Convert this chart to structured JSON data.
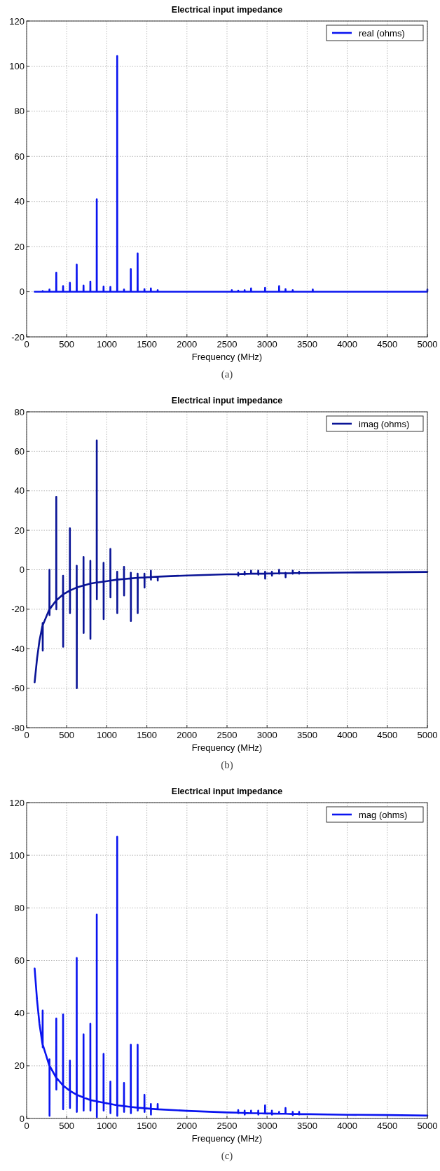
{
  "chart_data": [
    {
      "type": "line",
      "title": "Electrical input impedance",
      "xlabel": "Frequency (MHz)",
      "annotations": [
        "(a)"
      ],
      "xlim": [
        0,
        5000
      ],
      "xticks": [
        0,
        500,
        1000,
        1500,
        2000,
        2500,
        3000,
        3500,
        4000,
        4500,
        5000
      ],
      "ylim": [
        -20,
        120
      ],
      "yticks": [
        -20,
        0,
        20,
        40,
        60,
        80,
        100,
        120
      ],
      "grid": true,
      "legend": "top right",
      "series": [
        {
          "name": "real (ohms)",
          "color": "#0a14f0",
          "x": [
            100,
            199,
            200,
            201,
            284,
            285,
            286,
            369,
            370,
            371,
            454,
            455,
            456,
            539,
            540,
            541,
            624,
            625,
            626,
            709,
            710,
            711,
            794,
            795,
            796,
            874,
            875,
            876,
            959,
            960,
            961,
            1044,
            1045,
            1046,
            1129,
            1130,
            1131,
            1214,
            1215,
            1216,
            1299,
            1300,
            1301,
            1384,
            1385,
            1386,
            1469,
            1470,
            1471,
            1549,
            1550,
            1551,
            1634,
            1635,
            1636,
            2559,
            2560,
            2561,
            2639,
            2640,
            2641,
            2719,
            2720,
            2721,
            2799,
            2800,
            2801,
            2974,
            2975,
            2976,
            3149,
            3150,
            3151,
            3229,
            3230,
            3231,
            3319,
            3320,
            3321,
            3569,
            3570,
            3571,
            4999,
            5000
          ],
          "values": [
            0,
            0,
            0.3,
            0,
            0,
            1,
            0,
            0,
            8.5,
            0,
            0,
            2.5,
            0,
            0,
            4,
            0,
            0,
            12,
            0,
            0,
            2.7,
            0,
            0,
            4.5,
            0,
            0,
            41,
            0,
            0,
            2.3,
            0,
            0,
            2.2,
            0,
            0,
            104.5,
            0,
            0,
            1,
            0,
            0,
            10,
            0,
            0,
            17,
            0,
            0,
            1.2,
            0,
            0,
            1.5,
            0,
            0,
            0.7,
            0,
            0,
            0.7,
            0,
            0,
            0.5,
            0,
            0,
            0.7,
            0,
            0,
            1.5,
            0,
            0,
            1.7,
            0,
            0,
            2.5,
            0,
            0,
            1.2,
            0,
            0,
            0.7,
            0,
            0,
            1,
            0,
            0,
            1
          ]
        }
      ]
    },
    {
      "type": "line",
      "title": "Electrical input impedance",
      "xlabel": "Frequency (MHz)",
      "annotations": [
        "(b)"
      ],
      "xlim": [
        0,
        5000
      ],
      "xticks": [
        0,
        500,
        1000,
        1500,
        2000,
        2500,
        3000,
        3500,
        4000,
        4500,
        5000
      ],
      "ylim": [
        -80,
        80
      ],
      "yticks": [
        -80,
        -60,
        -40,
        -20,
        0,
        20,
        40,
        60,
        80
      ],
      "grid": true,
      "legend": "top right",
      "series": [
        {
          "name": "imag (ohms)",
          "color": "#0a1496",
          "x": [
            100,
            130,
            160,
            199,
            200,
            201,
            202,
            284,
            285,
            286,
            287,
            369,
            370,
            371,
            372,
            454,
            455,
            456,
            457,
            539,
            540,
            541,
            542,
            624,
            625,
            626,
            627,
            709,
            710,
            711,
            712,
            794,
            795,
            796,
            797,
            874,
            875,
            876,
            877,
            959,
            960,
            961,
            962,
            1044,
            1045,
            1046,
            1047,
            1129,
            1130,
            1131,
            1132,
            1214,
            1215,
            1216,
            1217,
            1299,
            1300,
            1301,
            1302,
            1384,
            1385,
            1386,
            1387,
            1469,
            1470,
            1471,
            1472,
            1549,
            1550,
            1551,
            1552,
            1634,
            1635,
            1636,
            1637,
            2000,
            2500,
            2639,
            2640,
            2641,
            2642,
            2719,
            2720,
            2721,
            2722,
            2799,
            2800,
            2801,
            2802,
            2889,
            2890,
            2891,
            2892,
            2974,
            2975,
            2976,
            2977,
            3059,
            3060,
            3061,
            3062,
            3149,
            3150,
            3151,
            3152,
            3229,
            3230,
            3231,
            3232,
            3319,
            3320,
            3321,
            3322,
            3399,
            3400,
            3401,
            3402,
            4000,
            4500,
            5000
          ],
          "values": [
            -57,
            -45,
            -36,
            -28,
            -27,
            -41,
            -28,
            -20,
            0,
            -23,
            -20,
            -15.5,
            37,
            -20,
            -15.5,
            -12.5,
            -3,
            -39,
            -12.5,
            -10.5,
            21,
            -22,
            -10.5,
            -9,
            2,
            -60,
            -9,
            -8,
            6.5,
            -32,
            -8,
            -7,
            4.5,
            -35,
            -7,
            -6.5,
            65.5,
            -15,
            -6.5,
            -6,
            3.5,
            -25,
            -6,
            -5.5,
            10.5,
            -14,
            -5.5,
            -5,
            -1,
            -22,
            -5,
            -4.7,
            1.5,
            -13,
            -4.7,
            -4.4,
            -1.5,
            -26,
            -4.4,
            -4.1,
            -2,
            -22,
            -4.1,
            -3.9,
            -2,
            -9,
            -3.9,
            -3.7,
            -0.5,
            -5,
            -3.7,
            -3.5,
            -3.5,
            -5.5,
            -3.5,
            -2.9,
            -2.3,
            -2.2,
            -1.5,
            -3,
            -2.2,
            -2.1,
            -1,
            -2.5,
            -2.1,
            -2,
            -0.5,
            -2,
            -2,
            -2,
            -0.5,
            -2.5,
            -2,
            -1.9,
            -1,
            -4.5,
            -1.9,
            -1.9,
            -1,
            -3,
            -1.9,
            -1.8,
            0,
            -2,
            -1.8,
            -1.8,
            -1.5,
            -3.8,
            -1.8,
            -1.7,
            -0.5,
            -2,
            -1.7,
            -1.7,
            -1,
            -2,
            -1.7,
            -1.4,
            -1.3,
            -1.1
          ]
        }
      ]
    },
    {
      "type": "line",
      "title": "Electrical input impedance",
      "xlabel": "Frequency (MHz)",
      "annotations": [
        "(c)"
      ],
      "xlim": [
        0,
        5000
      ],
      "xticks": [
        0,
        500,
        1000,
        1500,
        2000,
        2500,
        3000,
        3500,
        4000,
        4500,
        5000
      ],
      "ylim": [
        0,
        120
      ],
      "yticks": [
        0,
        20,
        40,
        60,
        80,
        100,
        120
      ],
      "grid": true,
      "legend": "top right",
      "series": [
        {
          "name": "mag  (ohms)",
          "color": "#0a14f0",
          "x": [
            100,
            130,
            160,
            199,
            200,
            201,
            202,
            284,
            285,
            286,
            287,
            369,
            370,
            371,
            372,
            454,
            455,
            456,
            457,
            539,
            540,
            541,
            542,
            624,
            625,
            626,
            627,
            709,
            710,
            711,
            712,
            794,
            795,
            796,
            797,
            874,
            875,
            876,
            877,
            959,
            960,
            961,
            962,
            1044,
            1045,
            1046,
            1047,
            1129,
            1130,
            1131,
            1132,
            1214,
            1215,
            1216,
            1217,
            1299,
            1300,
            1301,
            1302,
            1384,
            1385,
            1386,
            1387,
            1469,
            1470,
            1471,
            1472,
            1549,
            1550,
            1551,
            1552,
            1634,
            1635,
            1636,
            1637,
            2000,
            2500,
            2639,
            2640,
            2641,
            2642,
            2719,
            2720,
            2721,
            2722,
            2799,
            2800,
            2801,
            2802,
            2889,
            2890,
            2891,
            2892,
            2974,
            2975,
            2976,
            2977,
            3059,
            3060,
            3061,
            3062,
            3149,
            3150,
            3151,
            3152,
            3229,
            3230,
            3231,
            3232,
            3319,
            3320,
            3321,
            3322,
            3399,
            3400,
            3401,
            3402,
            4000,
            4500,
            5000
          ],
          "values": [
            57,
            45,
            36,
            28,
            41,
            27,
            28,
            20,
            22.5,
            1,
            20,
            15.5,
            38,
            11,
            15.5,
            12.5,
            39.5,
            3.5,
            12.5,
            10.5,
            22,
            4,
            10.5,
            9,
            61,
            2.5,
            9,
            8,
            32,
            3,
            8,
            7,
            36,
            3,
            7,
            6.5,
            77.5,
            0.5,
            6.5,
            6,
            24.5,
            3,
            6,
            5.5,
            14,
            2,
            5.5,
            5,
            107,
            1,
            5,
            4.7,
            13.5,
            2.5,
            4.7,
            4.4,
            28,
            2,
            4.4,
            4.1,
            28,
            3,
            4.1,
            3.9,
            9,
            2.5,
            3.9,
            3.7,
            5.5,
            1.5,
            3.7,
            3.5,
            5.5,
            4,
            3.5,
            2.9,
            2.3,
            2.2,
            3.2,
            2,
            2.2,
            2.1,
            3,
            1.5,
            2.1,
            2,
            3,
            2,
            2,
            2,
            3,
            1.5,
            2,
            1.9,
            5,
            2,
            1.9,
            1.9,
            3,
            1.5,
            1.9,
            1.8,
            2.5,
            1.8,
            1.8,
            1.8,
            4,
            2,
            1.8,
            1.7,
            2.5,
            1.3,
            1.7,
            1.7,
            2.5,
            1.5,
            1.7,
            1.4,
            1.3,
            1.1
          ]
        }
      ]
    }
  ]
}
